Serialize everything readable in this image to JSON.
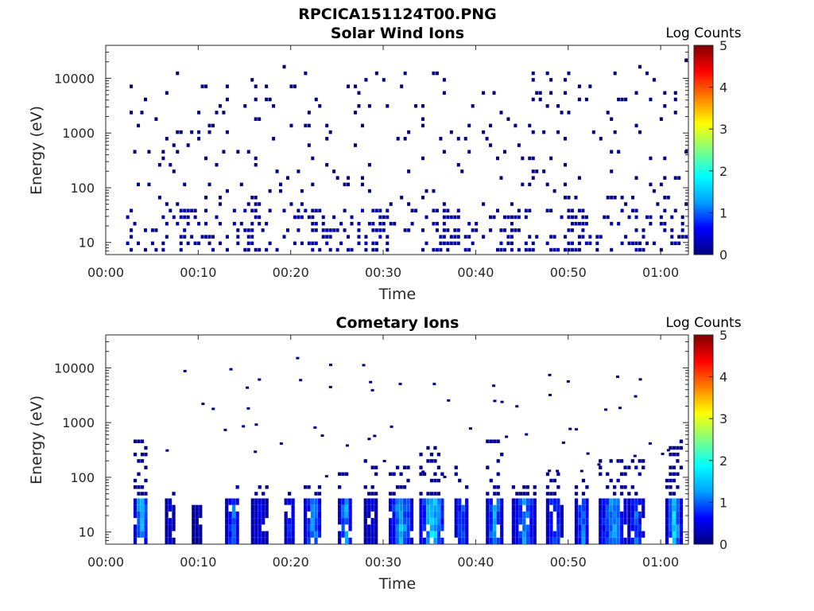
{
  "figure_title": "RPCICA151124T00.PNG",
  "colormap": [
    "#000080",
    "#0000ff",
    "#00a0ff",
    "#00ffff",
    "#80ff80",
    "#ffff00",
    "#ff8000",
    "#ff0000",
    "#800000"
  ],
  "chart_data": [
    {
      "type": "heatmap",
      "title": "Solar Wind Ions",
      "xlabel": "Time",
      "ylabel": "Energy (eV)",
      "yscale": "log",
      "xlim_minutes": [
        0,
        63
      ],
      "ylim": [
        6,
        40000
      ],
      "xticks": [
        "00:00",
        "00:10",
        "00:20",
        "00:30",
        "00:40",
        "00:50",
        "01:00"
      ],
      "yticks": [
        "10",
        "100",
        "1000",
        "10000"
      ],
      "colorbar": {
        "label": "Log Counts",
        "range": [
          0,
          5
        ],
        "ticks": [
          "0",
          "1",
          "2",
          "3",
          "4",
          "5"
        ]
      },
      "data_coverage_minutes": [
        2.2,
        62.8
      ],
      "approx_max_log_counts": 0.3,
      "description_values": {
        "sparse_high_energy_counts_log": 0.0,
        "low_energy_band_eV": [
          6,
          40
        ]
      }
    },
    {
      "type": "heatmap",
      "title": "Cometary Ions",
      "xlabel": "Time",
      "ylabel": "Energy (eV)",
      "yscale": "log",
      "xlim_minutes": [
        0,
        63
      ],
      "ylim": [
        6,
        40000
      ],
      "xticks": [
        "00:00",
        "00:10",
        "00:20",
        "00:30",
        "00:40",
        "00:50",
        "01:00"
      ],
      "yticks": [
        "10",
        "100",
        "1000",
        "10000"
      ],
      "colorbar": {
        "label": "Log Counts",
        "range": [
          0,
          5
        ],
        "ticks": [
          "0",
          "1",
          "2",
          "3",
          "4",
          "5"
        ]
      },
      "bursts": [
        {
          "t": 3.7,
          "w": 1.4,
          "top": 350,
          "peak": 1.8
        },
        {
          "t": 6.8,
          "w": 0.8,
          "top": 40,
          "peak": 0.6
        },
        {
          "t": 9.8,
          "w": 1.0,
          "top": 25,
          "peak": 0.3
        },
        {
          "t": 13.6,
          "w": 1.4,
          "top": 60,
          "peak": 1.3
        },
        {
          "t": 16.5,
          "w": 1.6,
          "top": 60,
          "peak": 0.7
        },
        {
          "t": 19.8,
          "w": 1.0,
          "top": 40,
          "peak": 1.0
        },
        {
          "t": 22.3,
          "w": 1.8,
          "top": 50,
          "peak": 1.5
        },
        {
          "t": 25.8,
          "w": 1.4,
          "top": 100,
          "peak": 1.6
        },
        {
          "t": 28.6,
          "w": 1.4,
          "top": 150,
          "peak": 0.6
        },
        {
          "t": 31.8,
          "w": 2.4,
          "top": 120,
          "peak": 1.7
        },
        {
          "t": 35.2,
          "w": 2.6,
          "top": 300,
          "peak": 2.0
        },
        {
          "t": 38.4,
          "w": 1.4,
          "top": 120,
          "peak": 1.3
        },
        {
          "t": 41.9,
          "w": 1.6,
          "top": 350,
          "peak": 1.7
        },
        {
          "t": 45.1,
          "w": 2.4,
          "top": 60,
          "peak": 1.5
        },
        {
          "t": 48.4,
          "w": 1.6,
          "top": 100,
          "peak": 1.2
        },
        {
          "t": 51.4,
          "w": 1.4,
          "top": 80,
          "peak": 1.4
        },
        {
          "t": 54.7,
          "w": 2.8,
          "top": 150,
          "peak": 1.6
        },
        {
          "t": 57.2,
          "w": 1.6,
          "top": 150,
          "peak": 1.2
        },
        {
          "t": 61.3,
          "w": 1.6,
          "top": 400,
          "peak": 1.9
        }
      ]
    }
  ]
}
